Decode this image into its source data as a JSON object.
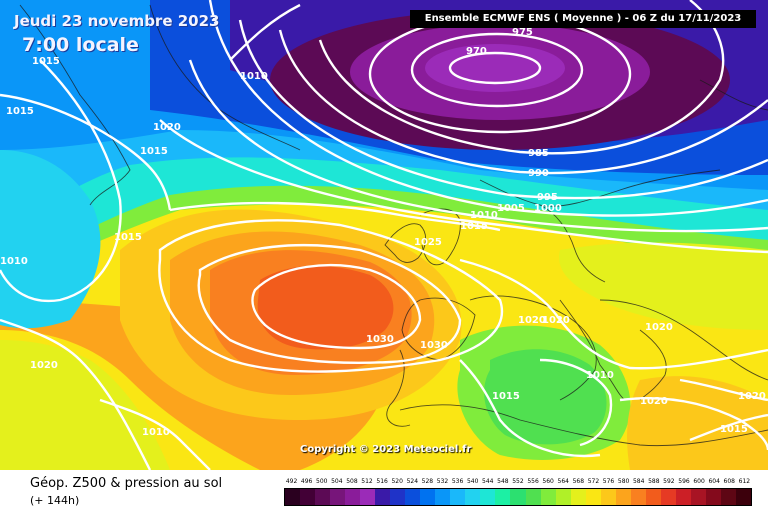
{
  "header": {
    "date": "Jeudi 23 novembre 2023",
    "local_time": "7:00 locale",
    "model_run": "Ensemble ECMWF ENS  ( Moyenne )  - 06 Z du 17/11/2023"
  },
  "copyright": "Copyright © 2023 Meteociel.fr",
  "product": {
    "title": "Géop. Z500 & pression au sol",
    "lead": "(+ 144h)"
  },
  "isobar_labels": [
    "975",
    "970",
    "985",
    "990",
    "995",
    "1000",
    "1005",
    "1010",
    "1015",
    "1010",
    "1015",
    "1020",
    "1015",
    "1015",
    "1015",
    "1020",
    "1025",
    "1030",
    "1030",
    "1020",
    "1020",
    "1020",
    "1010",
    "1015",
    "1010",
    "1020",
    "1015",
    "1020",
    "1010",
    "1015",
    "1010",
    "1015",
    "1010",
    "1015"
  ],
  "scale": {
    "ticks": [
      "492",
      "496",
      "500",
      "504",
      "508",
      "512",
      "516",
      "520",
      "524",
      "528",
      "532",
      "536",
      "540",
      "544",
      "548",
      "552",
      "556",
      "560",
      "564",
      "568",
      "572",
      "576",
      "580",
      "584",
      "588",
      "592",
      "596",
      "600",
      "604",
      "608",
      "612"
    ],
    "colors": [
      "#2a001f",
      "#420036",
      "#5c0a55",
      "#77157a",
      "#8a1c9a",
      "#9b2bb8",
      "#3a1aa8",
      "#1f33c8",
      "#0b4fdc",
      "#0072f0",
      "#0a96f8",
      "#1ab8fa",
      "#22d2f0",
      "#1ee6d6",
      "#1cf0a4",
      "#2ce070",
      "#50e050",
      "#80ec3c",
      "#b0f028",
      "#e4f01c",
      "#fae614",
      "#fcc81a",
      "#fca41c",
      "#f98020",
      "#f25c1c",
      "#e63a24",
      "#cc1f26",
      "#a81424",
      "#840a1c",
      "#5e0614",
      "#3c000c"
    ]
  },
  "map_elements": [
    "low-pressure-center",
    "high-pressure-center",
    "isobars",
    "coastlines"
  ]
}
